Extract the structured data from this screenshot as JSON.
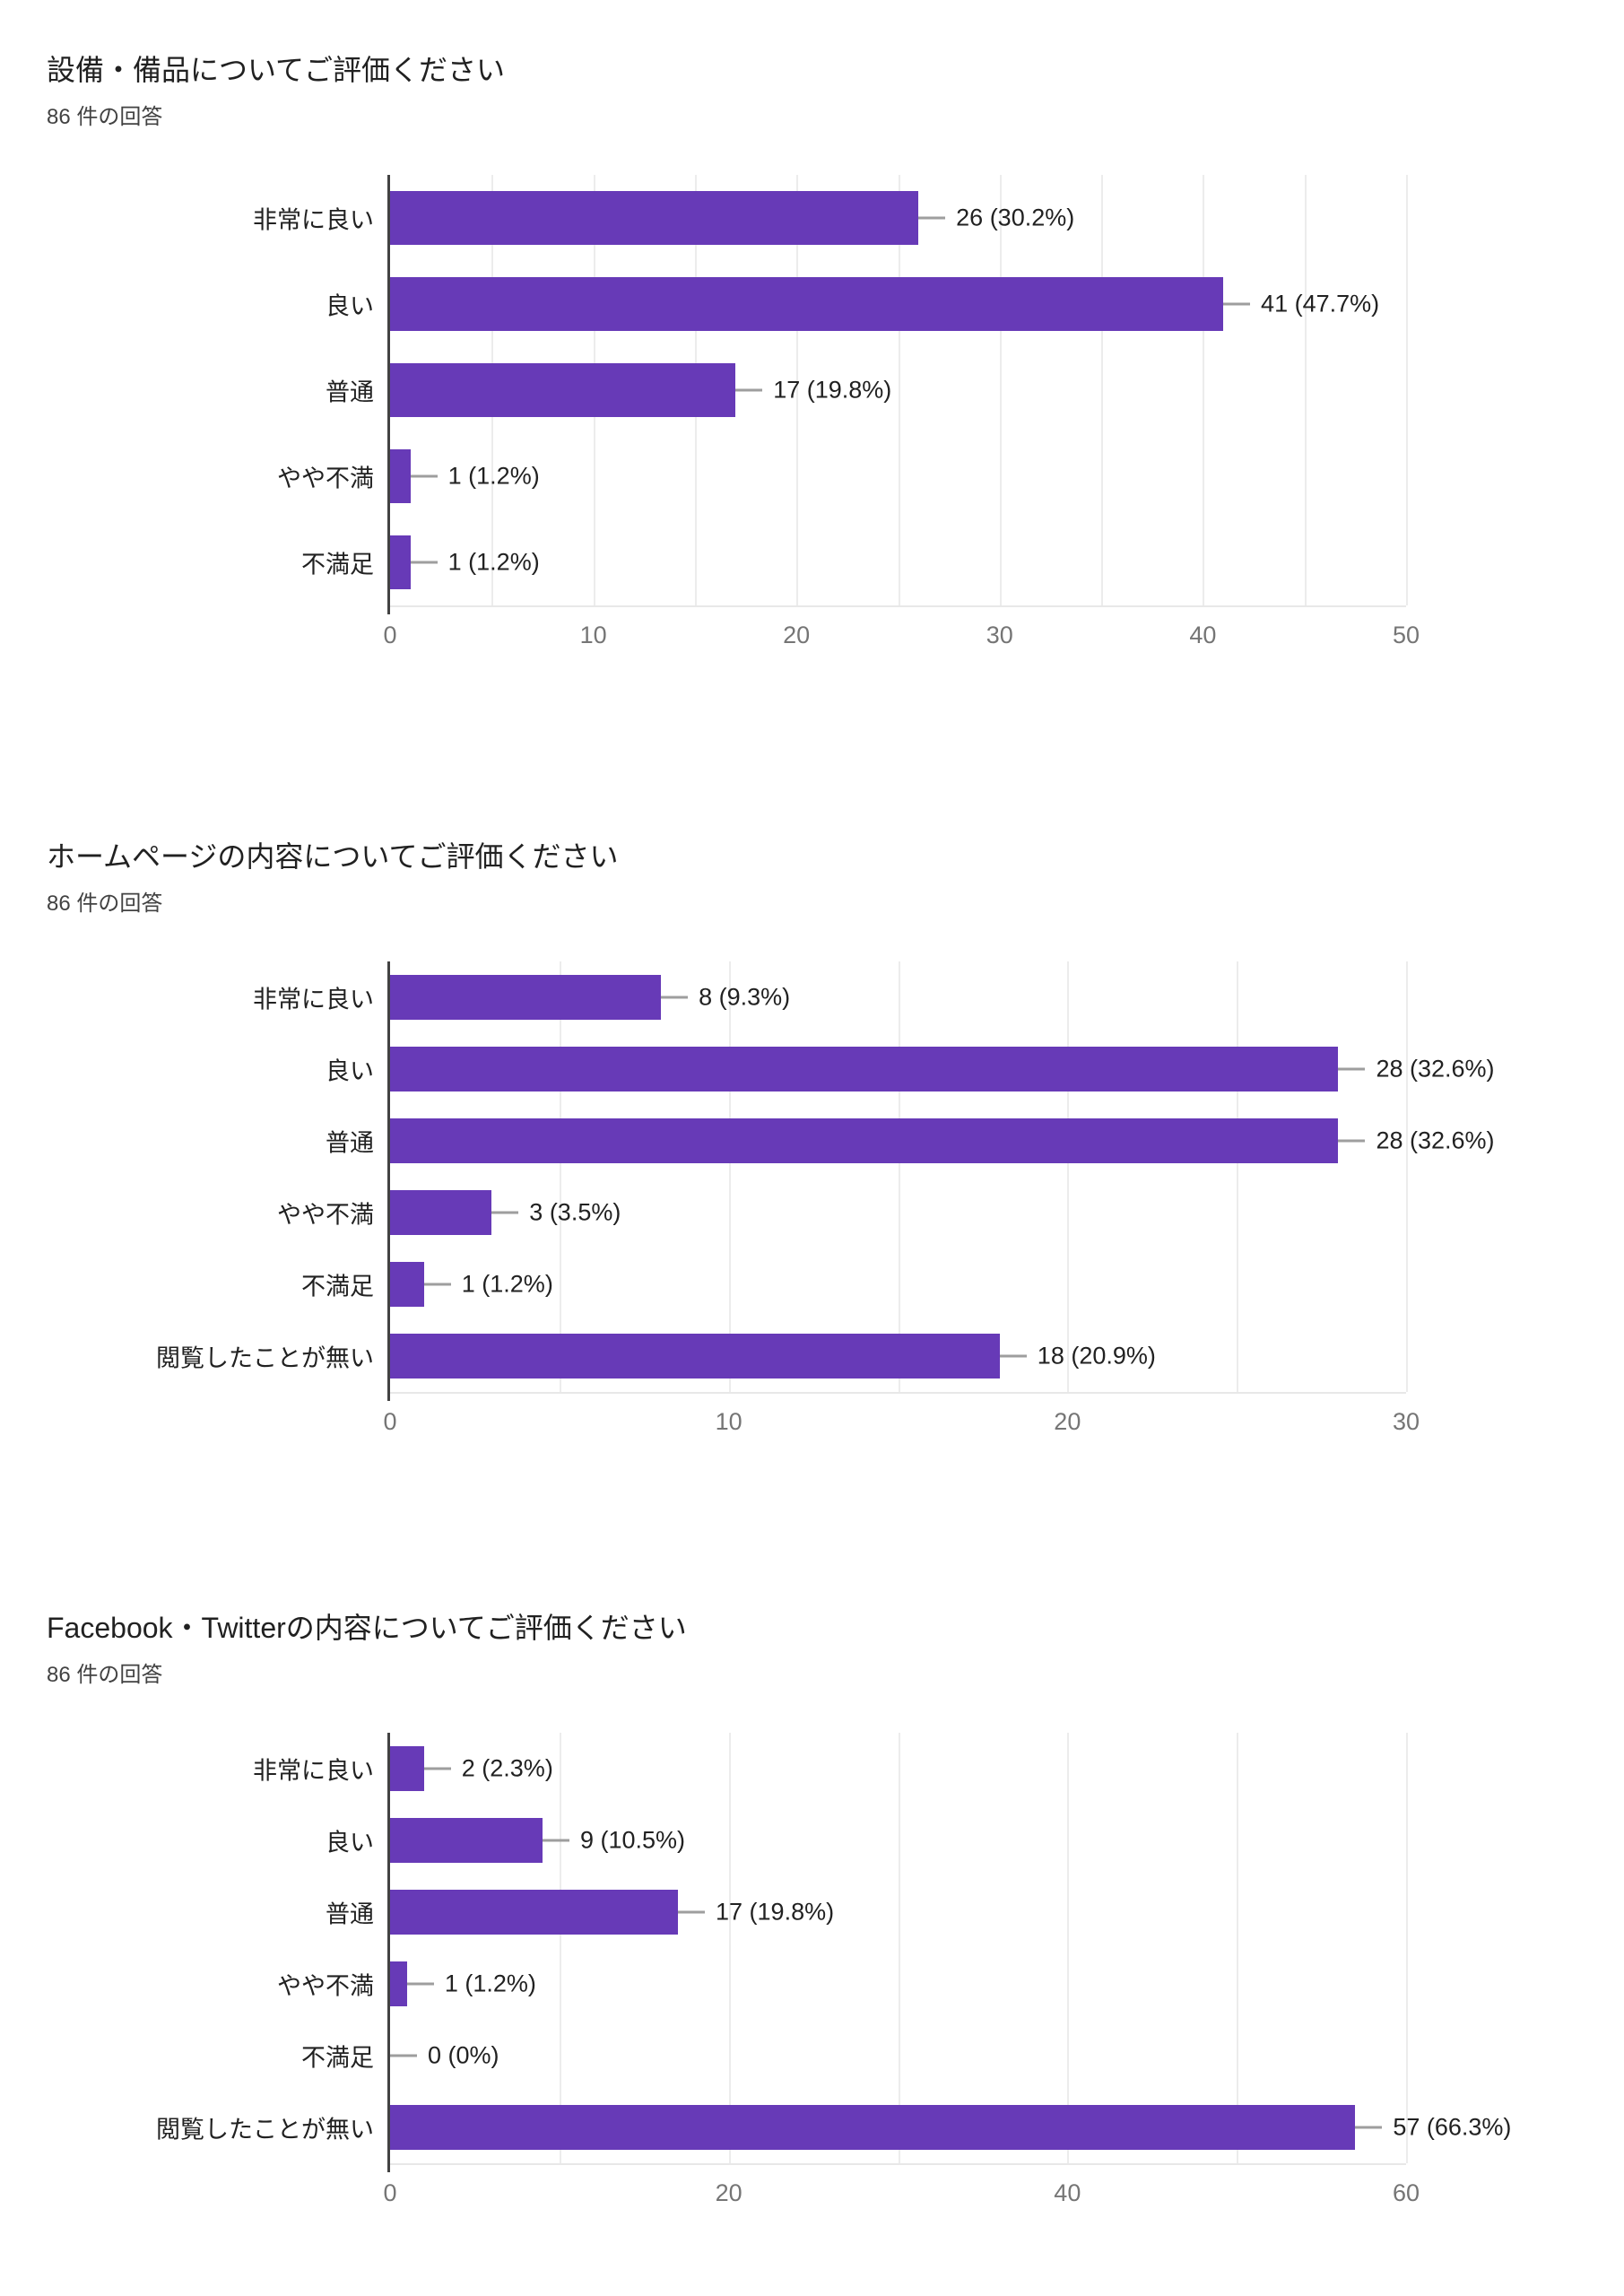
{
  "page": {
    "background": "#ffffff",
    "bar_color": "#673ab7",
    "axis_color": "#424242",
    "gridline_color": "#ececec",
    "tick_label_color": "#757575"
  },
  "chart_data": [
    {
      "type": "bar",
      "orientation": "horizontal",
      "title": "設備・備品についてご評価ください",
      "responses_label": "86 件の回答",
      "categories": [
        "非常に良い",
        "良い",
        "普通",
        "やや不満",
        "不満足"
      ],
      "values": [
        26,
        41,
        17,
        1,
        1
      ],
      "value_labels": [
        "26 (30.2%)",
        "41 (47.7%)",
        "17 (19.8%)",
        "1 (1.2%)",
        "1 (1.2%)"
      ],
      "xlim": [
        0,
        50
      ],
      "x_major_ticks": [
        0,
        10,
        20,
        30,
        40,
        50
      ],
      "x_minor_step": 5,
      "grid": true,
      "legend": "none",
      "bar_color": "#673ab7"
    },
    {
      "type": "bar",
      "orientation": "horizontal",
      "title": "ホームページの内容についてご評価ください",
      "responses_label": "86 件の回答",
      "categories": [
        "非常に良い",
        "良い",
        "普通",
        "やや不満",
        "不満足",
        "閲覧したことが無い"
      ],
      "values": [
        8,
        28,
        28,
        3,
        1,
        18
      ],
      "value_labels": [
        "8 (9.3%)",
        "28 (32.6%)",
        "28 (32.6%)",
        "3 (3.5%)",
        "1 (1.2%)",
        "18 (20.9%)"
      ],
      "xlim": [
        0,
        30
      ],
      "x_major_ticks": [
        0,
        10,
        20,
        30
      ],
      "x_minor_step": 5,
      "grid": true,
      "legend": "none",
      "bar_color": "#673ab7"
    },
    {
      "type": "bar",
      "orientation": "horizontal",
      "title": "Facebook・Twitterの内容についてご評価ください",
      "responses_label": "86 件の回答",
      "categories": [
        "非常に良い",
        "良い",
        "普通",
        "やや不満",
        "不満足",
        "閲覧したことが無い"
      ],
      "values": [
        2,
        9,
        17,
        1,
        0,
        57
      ],
      "value_labels": [
        "2 (2.3%)",
        "9 (10.5%)",
        "17 (19.8%)",
        "1 (1.2%)",
        "0 (0%)",
        "57 (66.3%)"
      ],
      "xlim": [
        0,
        60
      ],
      "x_major_ticks": [
        0,
        20,
        40,
        60
      ],
      "x_minor_step": 10,
      "grid": true,
      "legend": "none",
      "bar_color": "#673ab7"
    }
  ]
}
